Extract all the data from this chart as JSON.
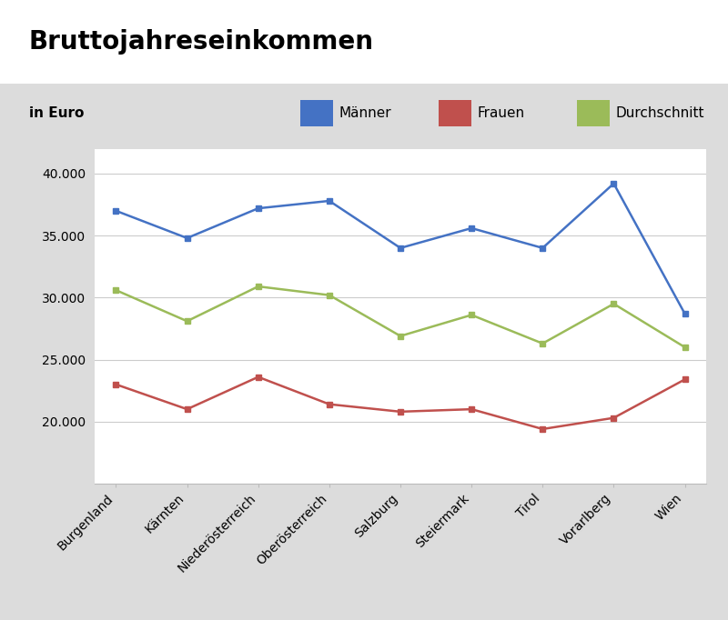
{
  "title": "Bruttojahreseinkommen",
  "subtitle": "in Euro",
  "categories": [
    "Burgenland",
    "Kärnten",
    "Niederösterreich",
    "Oberösterreich",
    "Salzburg",
    "Steiermark",
    "Tirol",
    "Vorarlberg",
    "Wien"
  ],
  "maenner": [
    37000,
    34800,
    37200,
    37800,
    34000,
    35600,
    34000,
    39200,
    28700
  ],
  "frauen": [
    23000,
    21000,
    23600,
    21400,
    20800,
    21000,
    19400,
    20300,
    23400
  ],
  "durchschnitt": [
    30600,
    28100,
    30900,
    30200,
    26900,
    28600,
    26300,
    29500,
    26000
  ],
  "line_colors": {
    "maenner": "#4472c4",
    "frauen": "#c0504d",
    "durchschnitt": "#9bbb59"
  },
  "marker": "s",
  "marker_size": 5,
  "legend_labels": [
    "Männer",
    "Frauen",
    "Durchschnitt"
  ],
  "ylim": [
    15000,
    42000
  ],
  "yticks": [
    20000,
    25000,
    30000,
    35000,
    40000
  ],
  "background_color": "#dcdcdc",
  "plot_background": "#ffffff",
  "title_bg": "#ffffff",
  "title_fontsize": 20,
  "subtitle_fontsize": 11,
  "tick_fontsize": 10,
  "legend_fontsize": 11
}
